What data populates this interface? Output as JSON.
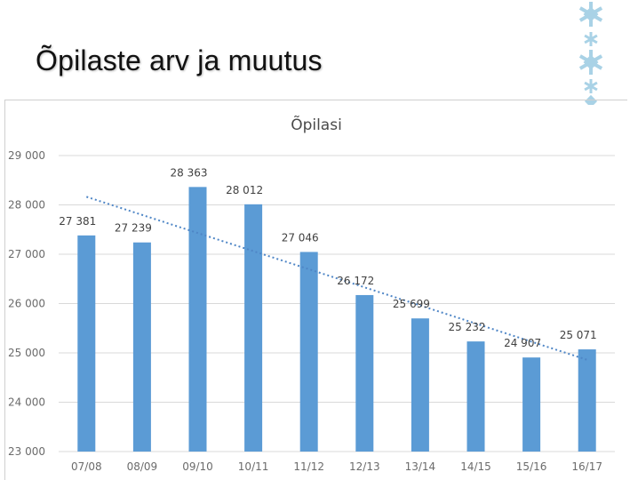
{
  "slide": {
    "title": "Õpilaste arv ja muutus"
  },
  "colors": {
    "bar": "#5b9bd5",
    "trend": "#4f86c6"
  },
  "decoration": {
    "icon": "snowflake-pattern-icon"
  },
  "chart_data": {
    "type": "bar",
    "title": "Õpilasi",
    "xlabel": "",
    "ylabel": "",
    "categories": [
      "07/08",
      "08/09",
      "09/10",
      "10/11",
      "11/12",
      "12/13",
      "13/14",
      "14/15",
      "15/16",
      "16/17"
    ],
    "values": [
      27381,
      27239,
      28363,
      28012,
      27046,
      26172,
      25699,
      25232,
      24907,
      25071
    ],
    "value_labels": [
      "27 381",
      "27 239",
      "28 363",
      "28 012",
      "27 046",
      "26 172",
      "25 699",
      "25 232",
      "24 907",
      "25 071"
    ],
    "ylim": [
      23000,
      29000
    ],
    "yticks": [
      23000,
      24000,
      25000,
      26000,
      27000,
      28000,
      29000
    ],
    "ytick_labels": [
      "23 000",
      "24 000",
      "25 000",
      "26 000",
      "27 000",
      "28 000",
      "29 000"
    ],
    "trendline": {
      "type": "linear",
      "style": "dotted"
    },
    "grid": true,
    "legend": "none"
  }
}
